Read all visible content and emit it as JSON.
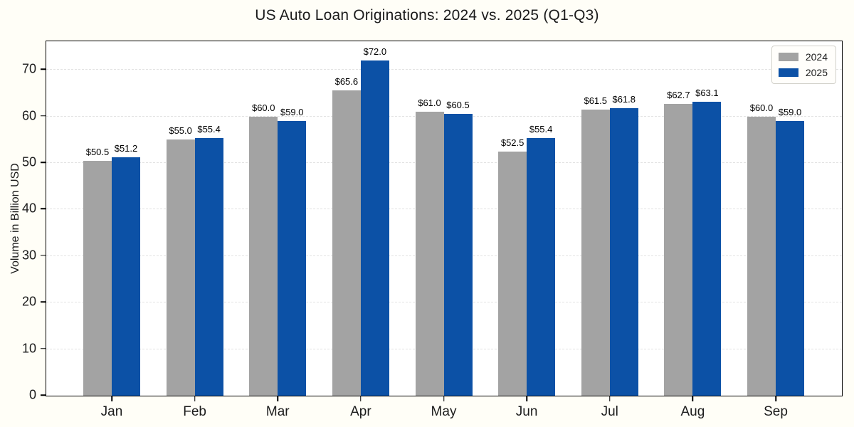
{
  "chart_data": {
    "type": "bar",
    "title": "US Auto Loan Originations: 2024 vs. 2025 (Q1-Q3)",
    "xlabel": "",
    "ylabel": "Volume in Billion USD",
    "categories": [
      "Jan",
      "Feb",
      "Mar",
      "Apr",
      "May",
      "Jun",
      "Jul",
      "Aug",
      "Sep"
    ],
    "series": [
      {
        "name": "2024",
        "color": "#a3a3a3",
        "values": [
          50.5,
          55.0,
          60.0,
          65.6,
          61.0,
          52.5,
          61.5,
          62.7,
          60.0
        ]
      },
      {
        "name": "2025",
        "color": "#0c51a6",
        "values": [
          51.2,
          55.4,
          59.0,
          72.0,
          60.5,
          55.4,
          61.8,
          63.1,
          59.0
        ]
      }
    ],
    "bar_labels": [
      [
        "$50.5",
        "$55.0",
        "$60.0",
        "$65.6",
        "$61.0",
        "$52.5",
        "$61.5",
        "$62.7",
        "$60.0"
      ],
      [
        "$51.2",
        "$55.4",
        "$59.0",
        "$72.0",
        "$60.5",
        "$55.4",
        "$61.8",
        "$63.1",
        "$59.0"
      ]
    ],
    "yticks": [
      0,
      10,
      20,
      30,
      40,
      50,
      60,
      70
    ],
    "ylim": [
      0,
      76
    ],
    "grid": true,
    "grid_style": "dashed",
    "legend_position": "upper right",
    "background_color": "#fffef7",
    "plot_background_color": "#ffffff"
  }
}
